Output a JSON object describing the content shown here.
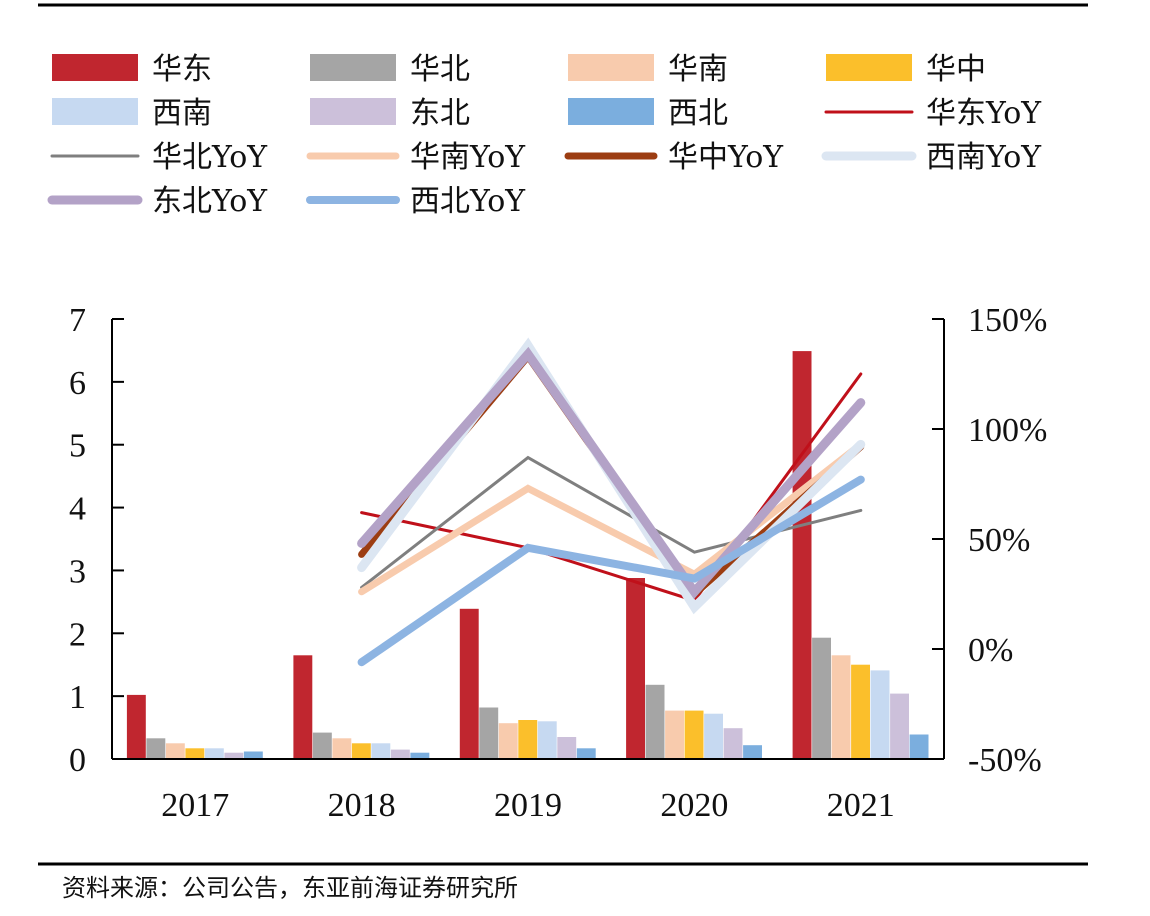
{
  "source": "资料来源：公司公告，东亚前海证券研究所",
  "chart_data": {
    "type": "bar",
    "categories": [
      "2017",
      "2018",
      "2019",
      "2020",
      "2021"
    ],
    "ylim": [
      0,
      7
    ],
    "y_ticks": [
      "0",
      "1",
      "2",
      "3",
      "4",
      "5",
      "6",
      "7"
    ],
    "y2lim": [
      -0.5,
      1.5
    ],
    "y2_ticks": [
      "-50%",
      "0%",
      "50%",
      "100%",
      "150%"
    ],
    "legend_position": "top",
    "series": [
      {
        "name": "华东",
        "kind": "bar",
        "color": "#c0262f",
        "values": [
          1.02,
          1.65,
          2.39,
          2.88,
          6.49
        ]
      },
      {
        "name": "华北",
        "kind": "bar",
        "color": "#a5a5a5",
        "values": [
          0.33,
          0.42,
          0.82,
          1.18,
          1.93
        ]
      },
      {
        "name": "华南",
        "kind": "bar",
        "color": "#f8cbad",
        "values": [
          0.25,
          0.33,
          0.57,
          0.77,
          1.65
        ]
      },
      {
        "name": "华中",
        "kind": "bar",
        "color": "#fbbf2b",
        "values": [
          0.17,
          0.25,
          0.62,
          0.77,
          1.5
        ]
      },
      {
        "name": "西南",
        "kind": "bar",
        "color": "#c6d9f1",
        "values": [
          0.17,
          0.25,
          0.6,
          0.72,
          1.41
        ]
      },
      {
        "name": "东北",
        "kind": "bar",
        "color": "#ccc0da",
        "values": [
          0.1,
          0.15,
          0.35,
          0.49,
          1.04
        ]
      },
      {
        "name": "西北",
        "kind": "bar",
        "color": "#7baede",
        "values": [
          0.12,
          0.1,
          0.17,
          0.22,
          0.39
        ]
      },
      {
        "name": "华东YoY",
        "kind": "line",
        "color": "#c0101a",
        "width": 3,
        "values": [
          null,
          0.62,
          0.46,
          0.22,
          1.25
        ]
      },
      {
        "name": "华北YoY",
        "kind": "line",
        "color": "#7f7f7f",
        "width": 3,
        "values": [
          null,
          0.28,
          0.87,
          0.44,
          0.63
        ]
      },
      {
        "name": "华南YoY",
        "kind": "line",
        "color": "#f8cbad",
        "width": 7,
        "values": [
          null,
          0.26,
          0.73,
          0.34,
          0.93
        ]
      },
      {
        "name": "华中YoY",
        "kind": "line",
        "color": "#9c3d12",
        "width": 7,
        "values": [
          null,
          0.43,
          1.33,
          0.25,
          0.92
        ]
      },
      {
        "name": "西南YoY",
        "kind": "line",
        "color": "#dce6f2",
        "width": 9,
        "values": [
          null,
          0.37,
          1.38,
          0.19,
          0.93
        ]
      },
      {
        "name": "东北YoY",
        "kind": "line",
        "color": "#b3a2c7",
        "width": 9,
        "values": [
          null,
          0.48,
          1.34,
          0.26,
          1.12
        ]
      },
      {
        "name": "西北YoY",
        "kind": "line",
        "color": "#8db4e2",
        "width": 8,
        "values": [
          null,
          -0.06,
          0.46,
          0.32,
          0.77
        ]
      }
    ]
  }
}
